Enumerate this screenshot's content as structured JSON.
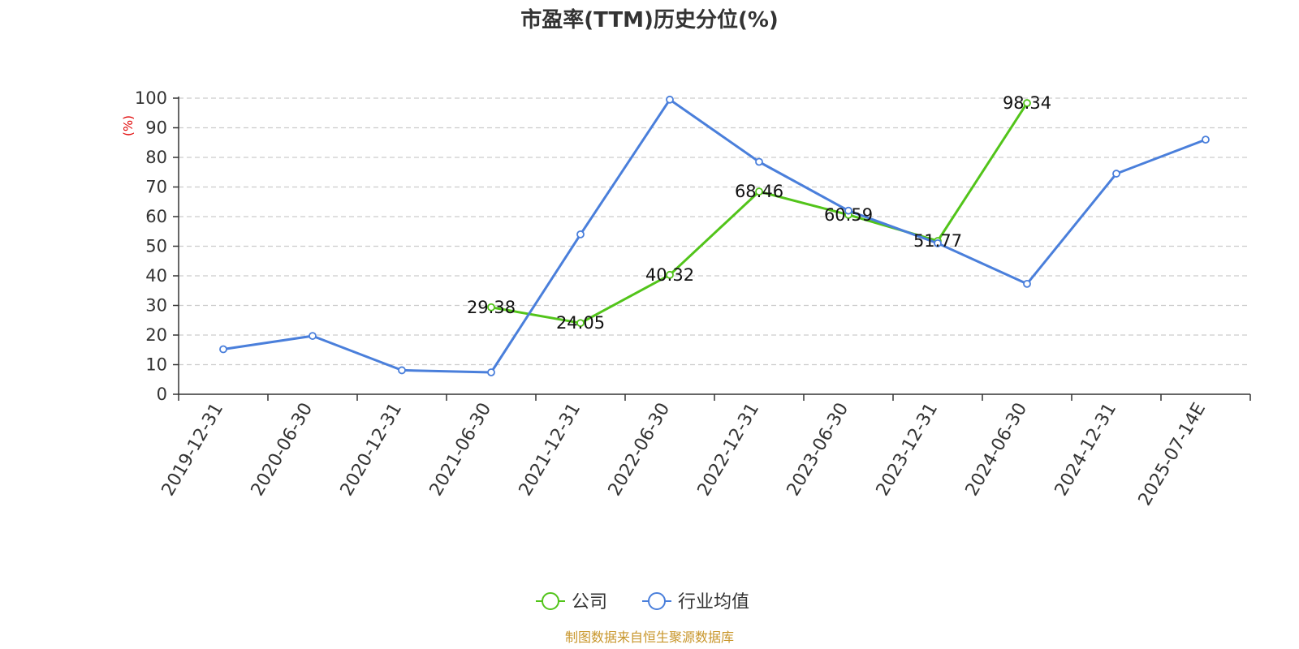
{
  "chart_data": {
    "type": "line",
    "title": "市盈率(TTM)历史分位(%)",
    "ylabel": "(%)",
    "ylim": [
      0,
      100
    ],
    "yticks": [
      0,
      10,
      20,
      30,
      40,
      50,
      60,
      70,
      80,
      90,
      100
    ],
    "grid": true,
    "legend_position": "bottom",
    "categories": [
      "2019-12-31",
      "2020-06-30",
      "2020-12-31",
      "2021-06-30",
      "2021-12-31",
      "2022-06-30",
      "2022-12-31",
      "2023-06-30",
      "2023-12-31",
      "2024-06-30",
      "2024-12-31",
      "2025-07-14E"
    ],
    "series": [
      {
        "name": "公司",
        "color": "#52c41a",
        "show_labels": true,
        "values": [
          null,
          null,
          null,
          29.38,
          24.05,
          40.32,
          68.46,
          60.59,
          51.77,
          98.34,
          null,
          null
        ]
      },
      {
        "name": "行业均值",
        "color": "#4a7fdb",
        "show_labels": false,
        "values": [
          15.2,
          19.7,
          8.1,
          7.4,
          54.0,
          99.5,
          78.5,
          62.0,
          51.0,
          37.3,
          74.5,
          86.0
        ]
      }
    ]
  },
  "source_text": "制图数据来自恒生聚源数据库"
}
